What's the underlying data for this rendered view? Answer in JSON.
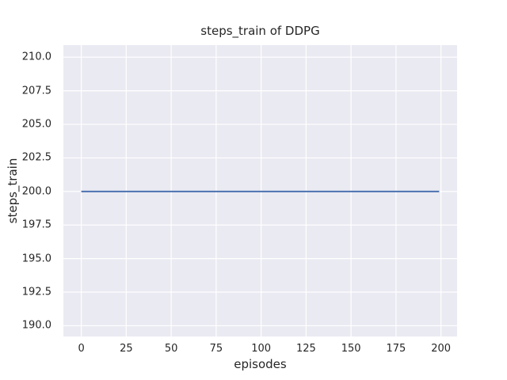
{
  "chart_data": {
    "type": "line",
    "title": "steps_train of DDPG",
    "xlabel": "episodes",
    "ylabel": "steps_train",
    "xlim": [
      -9.95,
      208.95
    ],
    "ylim": [
      189.2,
      210.9
    ],
    "grid": true,
    "legend": false,
    "x_ticks": {
      "values": [
        0,
        25,
        50,
        75,
        100,
        125,
        150,
        175,
        200
      ],
      "labels": [
        "0",
        "25",
        "50",
        "75",
        "100",
        "125",
        "150",
        "175",
        "200"
      ]
    },
    "y_ticks": {
      "values": [
        190.0,
        192.5,
        195.0,
        197.5,
        200.0,
        202.5,
        205.0,
        207.5,
        210.0
      ],
      "labels": [
        "190.0",
        "192.5",
        "195.0",
        "197.5",
        "200.0",
        "202.5",
        "205.0",
        "207.5",
        "210.0"
      ]
    },
    "series": [
      {
        "name": "steps_train",
        "color": "#4c72b0",
        "x": [
          0,
          199
        ],
        "y": [
          200,
          200
        ]
      }
    ],
    "style": {
      "figure_bg": "#ffffff",
      "plot_bg": "#eaeaf2",
      "grid_color": "#ffffff",
      "grid_width": 1.2,
      "line_width": 2,
      "text_color": "#262626"
    }
  }
}
